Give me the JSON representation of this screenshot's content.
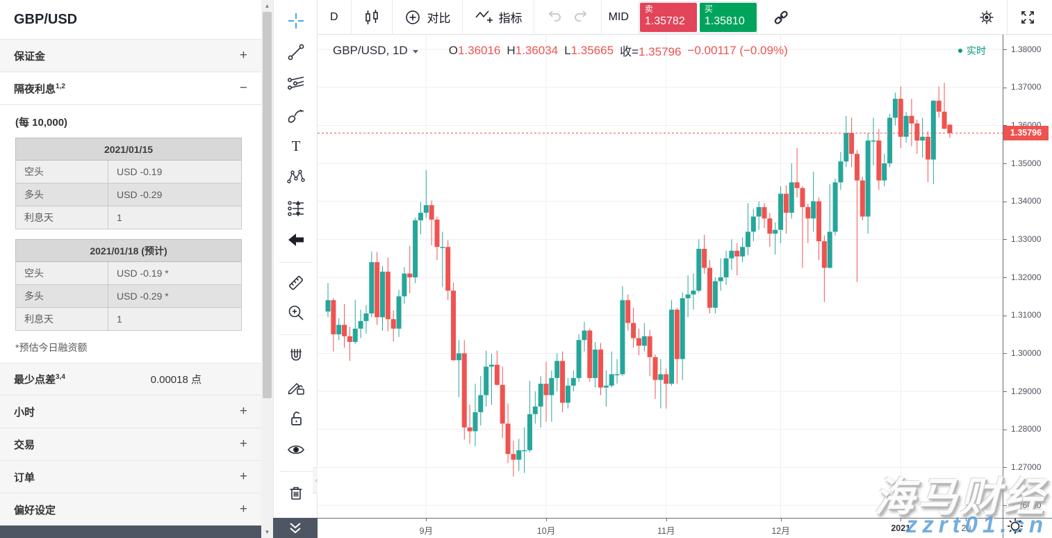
{
  "panel": {
    "title": "GBP/USD",
    "margin": {
      "label": "保证金",
      "toggle": "+"
    },
    "swap": {
      "label": "隔夜利息",
      "sup": "1,2",
      "toggle": "−",
      "per": "(每 10,000)",
      "tables": [
        {
          "header": "2021/01/15",
          "rows": [
            [
              "空头",
              "USD -0.19"
            ],
            [
              "多头",
              "USD -0.29"
            ],
            [
              "利息天",
              "1"
            ]
          ]
        },
        {
          "header": "2021/01/18 (预计)",
          "rows": [
            [
              "空头",
              "USD -0.19 *"
            ],
            [
              "多头",
              "USD -0.29 *"
            ],
            [
              "利息天",
              "1"
            ]
          ]
        }
      ],
      "footnote": "*预估今日融资额"
    },
    "min_spread": {
      "label": "最少点差",
      "sup": "3,4",
      "value": "0.00018 点"
    },
    "more": [
      {
        "label": "小时",
        "toggle": "+"
      },
      {
        "label": "交易",
        "toggle": "+"
      },
      {
        "label": "订单",
        "toggle": "+"
      },
      {
        "label": "偏好设定",
        "toggle": "+"
      }
    ]
  },
  "toolbar": {
    "interval": "D",
    "compare": "对比",
    "indicators": "指标",
    "mid": "MID",
    "sell_label": "卖",
    "sell_price": "1.35782",
    "buy_label": "买",
    "buy_price": "1.35810"
  },
  "drawing_toolbar": {
    "tools": [
      "crosshair",
      "trend-line",
      "pitchfork",
      "brush",
      "text",
      "xabcd-pattern",
      "forecast",
      "arrow-back",
      "ruler",
      "zoom-in",
      "magnet",
      "drawing-lock",
      "unlock",
      "eye",
      "trash",
      "collapse-toolbar"
    ]
  },
  "legend": {
    "symbol": "GBP/USD, 1D",
    "o_label": "O",
    "o": "1.36016",
    "h_label": "H",
    "h": "1.36034",
    "l_label": "L",
    "l": "1.35665",
    "c_label": "收=",
    "c": "1.35796",
    "change": "−0.00117 (−0.09%)",
    "realtime": "实时"
  },
  "watermark": {
    "title": "海马财经",
    "url": "zzrt01.cn"
  },
  "colors": {
    "up": "#26a69a",
    "down": "#ef5350",
    "sell_button": "#e2445a",
    "buy_button": "#00a35c",
    "realtime_green": "#089981",
    "crosshair_blue": "#2f9be3",
    "current_price_badge": "#ef5350"
  },
  "chart_data": {
    "type": "candlestick",
    "symbol": "GBP/USD",
    "interval": "1D",
    "legend_ohlc": {
      "open": 1.36016,
      "high": 1.36034,
      "low": 1.35665,
      "close": 1.35796,
      "change": -0.00117,
      "change_pct": "-0.09%"
    },
    "current_price": 1.35796,
    "current_price_label": "1.35796",
    "up_color": "#26a69a",
    "down_color": "#ef5350",
    "grid": true,
    "y_axis": {
      "ticks": [
        1.38,
        1.37,
        1.36,
        1.35,
        1.34,
        1.33,
        1.32,
        1.31,
        1.3,
        1.29,
        1.28,
        1.27,
        1.26
      ],
      "range": [
        1.2567,
        1.3842
      ],
      "format": "5dp"
    },
    "x_labels": [
      {
        "index": 18,
        "label": "9月"
      },
      {
        "index": 40,
        "label": "10月"
      },
      {
        "index": 62,
        "label": "11月"
      },
      {
        "index": 83,
        "label": "12月"
      },
      {
        "index": 105,
        "label": "2021",
        "bold": true
      },
      {
        "index": 117,
        "label": "20",
        "grid": false
      }
    ],
    "candles": [
      [
        1.311,
        1.3185,
        1.3095,
        1.314
      ],
      [
        1.314,
        1.3145,
        1.3005,
        1.305
      ],
      [
        1.305,
        1.3093,
        1.3035,
        1.3075
      ],
      [
        1.3075,
        1.313,
        1.3015,
        1.3045
      ],
      [
        1.3045,
        1.307,
        1.298,
        1.303
      ],
      [
        1.303,
        1.3141,
        1.3025,
        1.3065
      ],
      [
        1.3065,
        1.3115,
        1.304,
        1.3085
      ],
      [
        1.3085,
        1.3127,
        1.3052,
        1.3105
      ],
      [
        1.3105,
        1.3268,
        1.3095,
        1.324
      ],
      [
        1.324,
        1.3267,
        1.3075,
        1.3095
      ],
      [
        1.3095,
        1.323,
        1.306,
        1.3215
      ],
      [
        1.3215,
        1.3252,
        1.3058,
        1.309
      ],
      [
        1.309,
        1.3113,
        1.3031,
        1.3065
      ],
      [
        1.3065,
        1.3167,
        1.3043,
        1.315
      ],
      [
        1.315,
        1.3227,
        1.313,
        1.321
      ],
      [
        1.321,
        1.3283,
        1.3158,
        1.32
      ],
      [
        1.32,
        1.3357,
        1.3185,
        1.335
      ],
      [
        1.335,
        1.3398,
        1.3313,
        1.337
      ],
      [
        1.337,
        1.3482,
        1.3356,
        1.339
      ],
      [
        1.339,
        1.3402,
        1.3284,
        1.3352
      ],
      [
        1.3352,
        1.336,
        1.3245,
        1.328
      ],
      [
        1.328,
        1.332,
        1.3175,
        1.328
      ],
      [
        1.328,
        1.3298,
        1.314,
        1.3165
      ],
      [
        1.3165,
        1.3186,
        1.298,
        1.2982
      ],
      [
        1.2982,
        1.3035,
        1.2885,
        1.3
      ],
      [
        1.3,
        1.3035,
        1.2773,
        1.2805
      ],
      [
        1.2805,
        1.2865,
        1.2762,
        1.2795
      ],
      [
        1.2795,
        1.292,
        1.2756,
        1.2845
      ],
      [
        1.2845,
        1.294,
        1.281,
        1.289
      ],
      [
        1.289,
        1.3007,
        1.286,
        1.2965
      ],
      [
        1.2965,
        1.2999,
        1.2865,
        1.297
      ],
      [
        1.297,
        1.3007,
        1.2915,
        1.2917
      ],
      [
        1.2917,
        1.2965,
        1.2777,
        1.2815
      ],
      [
        1.2815,
        1.2868,
        1.2711,
        1.2735
      ],
      [
        1.2735,
        1.277,
        1.2676,
        1.272
      ],
      [
        1.272,
        1.2775,
        1.269,
        1.2745
      ],
      [
        1.2745,
        1.2805,
        1.2685,
        1.2745
      ],
      [
        1.2745,
        1.2928,
        1.274,
        1.284
      ],
      [
        1.284,
        1.29,
        1.2815,
        1.286
      ],
      [
        1.286,
        1.294,
        1.2805,
        1.292
      ],
      [
        1.292,
        1.2978,
        1.282,
        1.289
      ],
      [
        1.289,
        1.2955,
        1.282,
        1.2935
      ],
      [
        1.2935,
        1.3,
        1.29,
        1.298
      ],
      [
        1.298,
        1.3005,
        1.2845,
        1.287
      ],
      [
        1.287,
        1.2935,
        1.2855,
        1.2915
      ],
      [
        1.2915,
        1.2955,
        1.29,
        1.2935
      ],
      [
        1.2935,
        1.305,
        1.2925,
        1.3035
      ],
      [
        1.3035,
        1.3083,
        1.3005,
        1.306
      ],
      [
        1.306,
        1.3065,
        1.2925,
        1.2935
      ],
      [
        1.2935,
        1.303,
        1.291,
        1.301
      ],
      [
        1.301,
        1.3027,
        1.289,
        1.291
      ],
      [
        1.291,
        1.2955,
        1.286,
        1.2915
      ],
      [
        1.2915,
        1.3005,
        1.291,
        1.2945
      ],
      [
        1.2945,
        1.2985,
        1.292,
        1.2945
      ],
      [
        1.2945,
        1.3177,
        1.294,
        1.314
      ],
      [
        1.314,
        1.3155,
        1.306,
        1.308
      ],
      [
        1.308,
        1.312,
        1.3015,
        1.304
      ],
      [
        1.304,
        1.3065,
        1.2995,
        1.302
      ],
      [
        1.302,
        1.308,
        1.3005,
        1.3045
      ],
      [
        1.3045,
        1.3062,
        1.294,
        1.299
      ],
      [
        1.299,
        1.2997,
        1.288,
        1.293
      ],
      [
        1.293,
        1.2985,
        1.2855,
        1.2945
      ],
      [
        1.2945,
        1.296,
        1.2855,
        1.292
      ],
      [
        1.292,
        1.314,
        1.2915,
        1.3115
      ],
      [
        1.3115,
        1.312,
        1.292,
        1.2985
      ],
      [
        1.2985,
        1.316,
        1.293,
        1.3145
      ],
      [
        1.3145,
        1.3205,
        1.3095,
        1.3155
      ],
      [
        1.3155,
        1.321,
        1.3115,
        1.3165
      ],
      [
        1.3165,
        1.33,
        1.316,
        1.3275
      ],
      [
        1.3275,
        1.3312,
        1.321,
        1.3225
      ],
      [
        1.3225,
        1.3245,
        1.3105,
        1.312
      ],
      [
        1.312,
        1.32,
        1.3105,
        1.319
      ],
      [
        1.319,
        1.325,
        1.3165,
        1.32
      ],
      [
        1.32,
        1.327,
        1.318,
        1.325
      ],
      [
        1.325,
        1.33,
        1.322,
        1.327
      ],
      [
        1.327,
        1.329,
        1.3205,
        1.3255
      ],
      [
        1.3255,
        1.3305,
        1.324,
        1.328
      ],
      [
        1.328,
        1.3395,
        1.3258,
        1.332
      ],
      [
        1.332,
        1.338,
        1.3295,
        1.336
      ],
      [
        1.336,
        1.34,
        1.3325,
        1.3385
      ],
      [
        1.3385,
        1.3395,
        1.333,
        1.3355
      ],
      [
        1.3355,
        1.337,
        1.328,
        1.3315
      ],
      [
        1.3315,
        1.3345,
        1.326,
        1.3325
      ],
      [
        1.3325,
        1.344,
        1.329,
        1.342
      ],
      [
        1.342,
        1.3442,
        1.3315,
        1.337
      ],
      [
        1.337,
        1.35,
        1.3355,
        1.345
      ],
      [
        1.345,
        1.354,
        1.341,
        1.3435
      ],
      [
        1.3435,
        1.344,
        1.3225,
        1.3385
      ],
      [
        1.3385,
        1.3394,
        1.329,
        1.3355
      ],
      [
        1.3355,
        1.3478,
        1.332,
        1.34
      ],
      [
        1.34,
        1.341,
        1.3245,
        1.3295
      ],
      [
        1.3295,
        1.331,
        1.3135,
        1.3225
      ],
      [
        1.3225,
        1.3445,
        1.3223,
        1.332
      ],
      [
        1.332,
        1.346,
        1.331,
        1.345
      ],
      [
        1.345,
        1.353,
        1.343,
        1.3505
      ],
      [
        1.3505,
        1.3625,
        1.349,
        1.358
      ],
      [
        1.358,
        1.362,
        1.349,
        1.3525
      ],
      [
        1.3525,
        1.3535,
        1.3188,
        1.3455
      ],
      [
        1.3455,
        1.3465,
        1.335,
        1.336
      ],
      [
        1.336,
        1.358,
        1.3315,
        1.356
      ],
      [
        1.356,
        1.362,
        1.3495,
        1.356
      ],
      [
        1.356,
        1.359,
        1.343,
        1.3455
      ],
      [
        1.3455,
        1.3525,
        1.344,
        1.35
      ],
      [
        1.35,
        1.363,
        1.349,
        1.362
      ],
      [
        1.362,
        1.3686,
        1.36,
        1.367
      ],
      [
        1.367,
        1.3702,
        1.354,
        1.357
      ],
      [
        1.357,
        1.3635,
        1.3555,
        1.3625
      ],
      [
        1.3625,
        1.367,
        1.3545,
        1.3605
      ],
      [
        1.3605,
        1.3615,
        1.3525,
        1.356
      ],
      [
        1.356,
        1.362,
        1.3515,
        1.357
      ],
      [
        1.357,
        1.3585,
        1.3451,
        1.351
      ],
      [
        1.351,
        1.3665,
        1.3445,
        1.3665
      ],
      [
        1.3665,
        1.3702,
        1.362,
        1.3636
      ],
      [
        1.3636,
        1.3712,
        1.359,
        1.3591
      ],
      [
        1.36016,
        1.36034,
        1.35665,
        1.35796
      ]
    ]
  }
}
